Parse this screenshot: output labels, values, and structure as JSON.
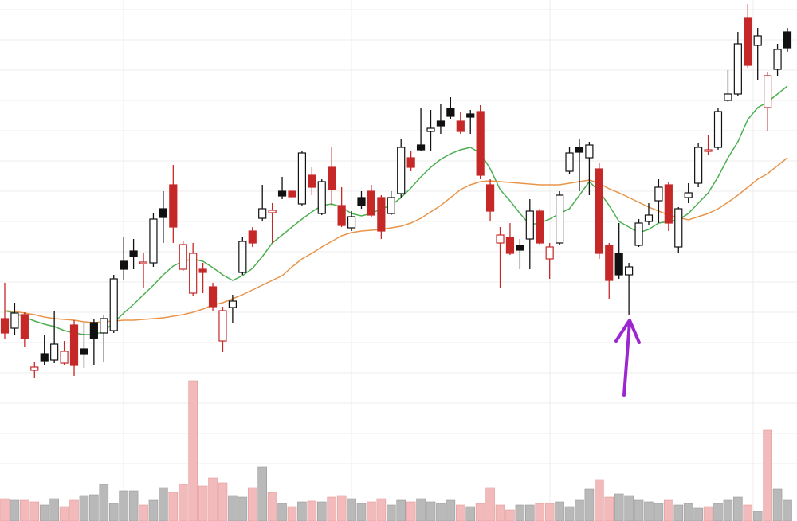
{
  "chart_data": {
    "type": "candlestick",
    "ylim": [
      0,
      480
    ],
    "up_color": "#111111",
    "down_color": "#c62828",
    "open": [
      80,
      68,
      85,
      15,
      36,
      28,
      24,
      72,
      42,
      75,
      62,
      65,
      152,
      165,
      149,
      150,
      218,
      248,
      142,
      112,
      142,
      120,
      52,
      94,
      138,
      190,
      206,
      213,
      240,
      240,
      224,
      260,
      212,
      270,
      222,
      194,
      232,
      240,
      232,
      212,
      237,
      282,
      298,
      315,
      328,
      344,
      328,
      337,
      340,
      248,
      175,
      182,
      172,
      180,
      215,
      155,
      175,
      265,
      295,
      282,
      268,
      172,
      162,
      135,
      172,
      202,
      228,
      248,
      170,
      232,
      250,
      290,
      295,
      354,
      362,
      458,
      423,
      345,
      393,
      440
    ],
    "high": [
      125,
      100,
      88,
      25,
      60,
      90,
      52,
      78,
      75,
      80,
      85,
      135,
      182,
      180,
      162,
      212,
      240,
      273,
      178,
      175,
      150,
      125,
      95,
      110,
      182,
      195,
      248,
      225,
      258,
      242,
      290,
      270,
      255,
      295,
      245,
      215,
      240,
      248,
      235,
      240,
      305,
      290,
      345,
      342,
      350,
      358,
      340,
      342,
      348,
      255,
      195,
      200,
      180,
      230,
      218,
      175,
      240,
      295,
      305,
      302,
      275,
      175,
      200,
      150,
      205,
      225,
      255,
      252,
      220,
      250,
      300,
      310,
      345,
      392,
      440,
      475,
      445,
      390,
      425,
      445
    ],
    "low": [
      55,
      60,
      44,
      5,
      22,
      24,
      22,
      8,
      18,
      22,
      25,
      62,
      128,
      142,
      118,
      145,
      175,
      175,
      140,
      108,
      112,
      90,
      38,
      75,
      135,
      170,
      202,
      175,
      230,
      232,
      222,
      235,
      210,
      222,
      195,
      190,
      218,
      208,
      180,
      210,
      232,
      265,
      290,
      290,
      312,
      330,
      312,
      312,
      255,
      202,
      118,
      160,
      142,
      142,
      172,
      130,
      172,
      262,
      240,
      235,
      155,
      105,
      130,
      85,
      170,
      198,
      200,
      190,
      162,
      225,
      245,
      285,
      292,
      352,
      360,
      395,
      380,
      315,
      385,
      415
    ],
    "close": [
      62,
      87,
      55,
      19,
      27,
      48,
      39,
      22,
      36,
      55,
      80,
      130,
      142,
      158,
      151,
      205,
      207,
      195,
      173,
      162,
      138,
      95,
      90,
      102,
      177,
      175,
      218,
      216,
      234,
      233,
      288,
      245,
      252,
      242,
      197,
      208,
      222,
      210,
      190,
      232,
      295,
      270,
      292,
      319,
      322,
      334,
      315,
      333,
      260,
      215,
      185,
      162,
      166,
      215,
      175,
      170,
      235,
      288,
      289,
      298,
      162,
      128,
      135,
      145,
      200,
      210,
      245,
      200,
      218,
      238,
      295,
      292,
      340,
      362,
      425,
      398,
      435,
      385,
      418,
      420
    ],
    "moving_averages": [
      {
        "color": "#4caf50",
        "values": [
          90,
          87,
          82,
          77,
          73,
          70,
          65,
          62,
          60,
          60,
          64,
          75,
          87,
          98,
          110,
          122,
          135,
          146,
          152,
          155,
          152,
          144,
          135,
          128,
          134,
          143,
          158,
          175,
          185,
          195,
          205,
          214,
          222,
          224,
          220,
          212,
          209,
          212,
          218,
          222,
          232,
          244,
          258,
          270,
          280,
          287,
          292,
          295,
          288,
          268,
          242,
          228,
          212,
          198,
          200,
          205,
          212,
          218,
          235,
          252,
          240,
          222,
          202,
          195,
          188,
          192,
          200,
          202,
          204,
          212,
          225,
          238,
          258,
          282,
          302,
          330,
          345,
          352,
          362,
          372
        ]
      },
      {
        "color": "#e8954a",
        "values": [
          90,
          89,
          87,
          85,
          82,
          80,
          79,
          78,
          76,
          75,
          76,
          77,
          78,
          78,
          79,
          80,
          81,
          83,
          85,
          88,
          92,
          97,
          100,
          105,
          110,
          116,
          122,
          128,
          134,
          145,
          155,
          162,
          170,
          177,
          184,
          188,
          190,
          191,
          192,
          194,
          196,
          200,
          206,
          214,
          222,
          232,
          242,
          248,
          252,
          253,
          252,
          251,
          250,
          249,
          248,
          248,
          248,
          250,
          252,
          254,
          250,
          243,
          238,
          232,
          226,
          220,
          215,
          210,
          207,
          204,
          208,
          212,
          218,
          226,
          235,
          245,
          255,
          262,
          272,
          282
        ]
      }
    ],
    "volume": {
      "ylim": [
        0,
        200
      ],
      "up_color": "#b9b9b9",
      "down_color": "#f2baba",
      "values": [
        28,
        26,
        26,
        24,
        20,
        28,
        18,
        26,
        32,
        33,
        46,
        22,
        38,
        38,
        20,
        26,
        42,
        36,
        46,
        176,
        44,
        54,
        48,
        32,
        30,
        42,
        68,
        36,
        22,
        18,
        24,
        25,
        24,
        30,
        32,
        28,
        22,
        24,
        28,
        20,
        26,
        24,
        28,
        24,
        22,
        26,
        20,
        18,
        22,
        42,
        20,
        14,
        20,
        20,
        22,
        22,
        24,
        18,
        26,
        40,
        52,
        30,
        34,
        32,
        26,
        24,
        22,
        26,
        20,
        22,
        16,
        18,
        22,
        26,
        30,
        20,
        12,
        114,
        40,
        26
      ]
    }
  }
}
